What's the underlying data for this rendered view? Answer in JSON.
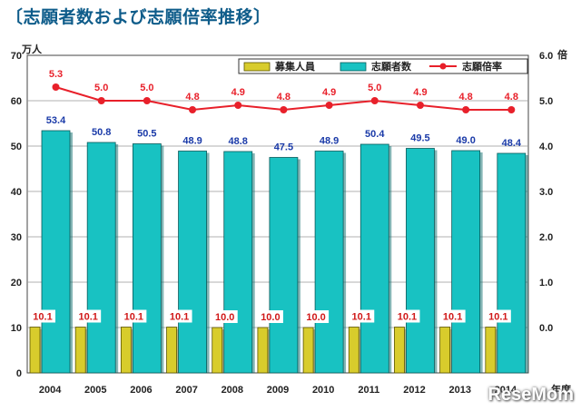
{
  "chart_data": {
    "type": "bar",
    "title": "〔志願者数および志願倍率推移〕",
    "left_axis_unit": "万人",
    "right_axis_unit": "倍",
    "x_axis_unit": "年度",
    "categories": [
      "2004",
      "2005",
      "2006",
      "2007",
      "2008",
      "2009",
      "2010",
      "2011",
      "2012",
      "2013",
      "2014"
    ],
    "ylim_left": [
      0,
      70
    ],
    "yticks_left": [
      "0",
      "10",
      "20",
      "30",
      "40",
      "50",
      "60",
      "70"
    ],
    "ylim_right": [
      -1.0,
      6.0
    ],
    "yticks_right": [
      "0.0",
      "1.0",
      "2.0",
      "3.0",
      "4.0",
      "5.0",
      "6.0"
    ],
    "grid": true,
    "legend_position": "top-right",
    "series": [
      {
        "name": "募集人員",
        "kind": "bar",
        "axis": "left",
        "color": "#d8cc2c",
        "values": [
          10.1,
          10.1,
          10.1,
          10.1,
          10.0,
          10.0,
          10.0,
          10.1,
          10.1,
          10.1,
          10.1
        ],
        "labels": [
          "10.1",
          "10.1",
          "10.1",
          "10.1",
          "10.0",
          "10.0",
          "10.0",
          "10.1",
          "10.1",
          "10.1",
          "10.1"
        ]
      },
      {
        "name": "志願者数",
        "kind": "bar",
        "axis": "left",
        "color": "#18c2c2",
        "values": [
          53.4,
          50.8,
          50.5,
          48.9,
          48.8,
          47.5,
          48.9,
          50.4,
          49.5,
          49.0,
          48.4
        ],
        "labels": [
          "53.4",
          "50.8",
          "50.5",
          "48.9",
          "48.8",
          "47.5",
          "48.9",
          "50.4",
          "49.5",
          "49.0",
          "48.4"
        ]
      },
      {
        "name": "志願倍率",
        "kind": "line",
        "axis": "right",
        "color": "#e8202a",
        "values": [
          5.3,
          5.0,
          5.0,
          4.8,
          4.9,
          4.8,
          4.9,
          5.0,
          4.9,
          4.8,
          4.8
        ],
        "labels": [
          "5.3",
          "5.0",
          "5.0",
          "4.8",
          "4.9",
          "4.8",
          "4.9",
          "5.0",
          "4.9",
          "4.8",
          "4.8"
        ]
      }
    ]
  },
  "watermark": "ReseMom"
}
